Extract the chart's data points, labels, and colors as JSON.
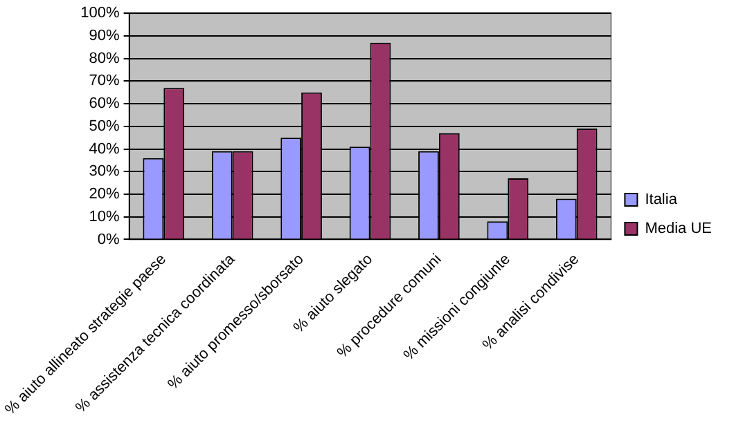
{
  "chart_data": {
    "type": "bar",
    "categories": [
      "% aiuto allineato strategie paese",
      "% assistenza tecnica coordinata",
      "% aiuto promesso/sborsato",
      "% aiuto slegato",
      "% procedure comuni",
      "% missioni congiunte",
      "% analisi condivise"
    ],
    "series": [
      {
        "name": "Italia",
        "color": "#9999ff",
        "values": [
          36,
          39,
          45,
          41,
          39,
          8,
          18
        ]
      },
      {
        "name": "Media UE",
        "color": "#993366",
        "values": [
          67,
          39,
          65,
          87,
          47,
          27,
          49
        ]
      }
    ],
    "ylim": [
      0,
      100
    ],
    "yticks": [
      {
        "value": 0,
        "label": "0%"
      },
      {
        "value": 10,
        "label": "10%"
      },
      {
        "value": 20,
        "label": "20%"
      },
      {
        "value": 30,
        "label": "30%"
      },
      {
        "value": 40,
        "label": "40%"
      },
      {
        "value": 50,
        "label": "50%"
      },
      {
        "value": 60,
        "label": "60%"
      },
      {
        "value": 70,
        "label": "70%"
      },
      {
        "value": 80,
        "label": "80%"
      },
      {
        "value": 90,
        "label": "90%"
      },
      {
        "value": 100,
        "label": "100%"
      }
    ],
    "grid": "y",
    "legend": "right"
  }
}
